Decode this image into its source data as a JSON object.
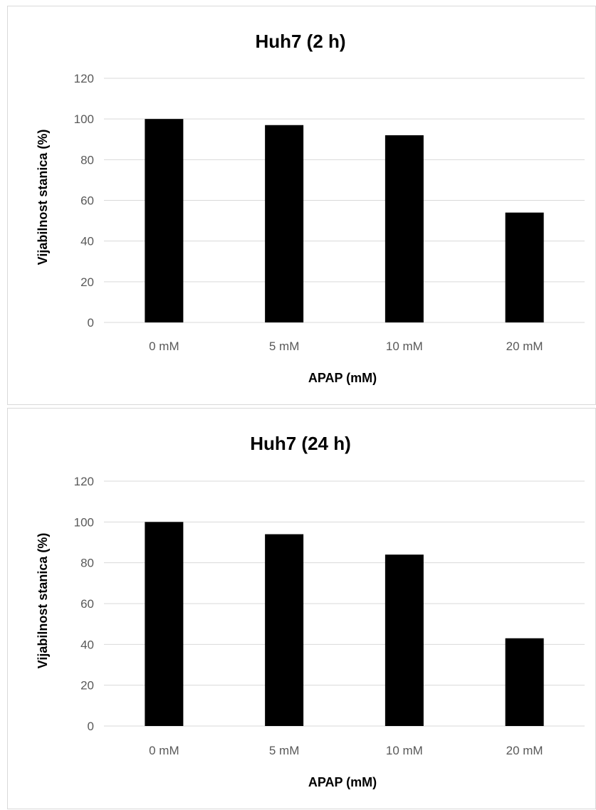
{
  "chart_data": [
    {
      "type": "bar",
      "title": "Huh7 (2 h)",
      "xlabel": "APAP (mM)",
      "ylabel": "Vijabilnost stanica (%)",
      "categories": [
        "0 mM",
        "5 mM",
        "10 mM",
        "20 mM"
      ],
      "values": [
        100,
        97,
        92,
        54
      ],
      "ylim": [
        0,
        120
      ],
      "yticks": [
        "0",
        "20",
        "40",
        "60",
        "80",
        "100",
        "120"
      ],
      "grid": true,
      "legend": "none",
      "bar_color": "#000000"
    },
    {
      "type": "bar",
      "title": "Huh7 (24 h)",
      "xlabel": "APAP (mM)",
      "ylabel": "Vijabilnost stanica (%)",
      "categories": [
        "0 mM",
        "5 mM",
        "10 mM",
        "20 mM"
      ],
      "values": [
        100,
        94,
        84,
        43
      ],
      "ylim": [
        0,
        120
      ],
      "yticks": [
        "0",
        "20",
        "40",
        "60",
        "80",
        "100",
        "120"
      ],
      "grid": true,
      "legend": "none",
      "bar_color": "#000000"
    }
  ]
}
